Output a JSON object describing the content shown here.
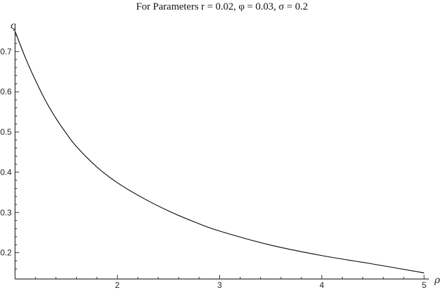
{
  "chart_data": {
    "type": "line",
    "title": "For Parameters r = 0.02, φ = 0.03, σ = 0.2",
    "xlabel": "ρ",
    "ylabel": "ς",
    "xlim": [
      1,
      5
    ],
    "ylim": [
      0.145,
      0.76
    ],
    "x_ticks": [
      2,
      3,
      4,
      5
    ],
    "x_tick_labels": [
      "2",
      "3",
      "4",
      "5"
    ],
    "y_ticks": [
      0.2,
      0.3,
      0.4,
      0.5,
      0.6,
      0.7
    ],
    "y_tick_labels": [
      "0.2",
      "0.3",
      "0.4",
      "0.5",
      "0.6",
      "0.7"
    ],
    "grid": false,
    "line_color": "#000000",
    "series": [
      {
        "x": [
          1.0,
          1.1,
          1.2,
          1.3,
          1.4,
          1.5,
          1.6,
          1.8,
          2.0,
          2.25,
          2.5,
          2.75,
          3.0,
          3.5,
          4.0,
          4.5,
          5.0
        ],
        "y": [
          0.75,
          0.685,
          0.628,
          0.577,
          0.534,
          0.497,
          0.464,
          0.413,
          0.374,
          0.336,
          0.304,
          0.277,
          0.254,
          0.219,
          0.193,
          0.172,
          0.15
        ]
      }
    ]
  }
}
